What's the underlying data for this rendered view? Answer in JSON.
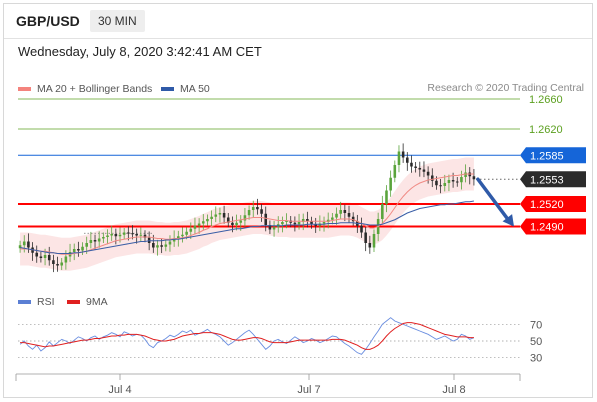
{
  "header": {
    "pair": "GBP/USD",
    "timeframe": "30 MIN",
    "datetime": "Wednesday, July 8, 2020 3:42:41 AM CET",
    "credit": "Research © 2020 Trading Central"
  },
  "legend_price": [
    {
      "label": "MA 20 + Bollinger Bands",
      "color": "#f4837d"
    },
    {
      "label": "MA 50",
      "color": "#2f5aa8"
    }
  ],
  "legend_rsi": [
    {
      "label": "RSI",
      "color": "#5b7fd4"
    },
    {
      "label": "9MA",
      "color": "#e02020"
    }
  ],
  "colors": {
    "resistance_green": "#5ca020",
    "pivot_blue": "#1565d8",
    "support_red": "#ff0000",
    "candle_up": "#5aa43c",
    "candle_down": "#2b2b2b",
    "arrow": "#2f5aa8"
  },
  "chart_data": {
    "type": "line",
    "title": "GBP/USD 30 MIN",
    "x_ticks": [
      "Jul 4",
      "Jul 7",
      "Jul 8"
    ],
    "ylim": [
      1.24,
      1.268
    ],
    "levels": [
      {
        "value": "1.2660",
        "kind": "resistance"
      },
      {
        "value": "1.2620",
        "kind": "resistance"
      },
      {
        "value": "1.2585",
        "kind": "pivot"
      },
      {
        "value": "1.2553",
        "kind": "last"
      },
      {
        "value": "1.2520",
        "kind": "support"
      },
      {
        "value": "1.2490",
        "kind": "support"
      }
    ],
    "price_series": {
      "name": "GBP/USD",
      "close": [
        1.2465,
        1.247,
        1.2462,
        1.2455,
        1.245,
        1.2448,
        1.2452,
        1.2445,
        1.244,
        1.2438,
        1.2442,
        1.245,
        1.2456,
        1.246,
        1.2458,
        1.2463,
        1.2468,
        1.2472,
        1.247,
        1.2474,
        1.2476,
        1.2478,
        1.248,
        1.2477,
        1.2479,
        1.2482,
        1.2481,
        1.248,
        1.2478,
        1.2479,
        1.2475,
        1.2468,
        1.2462,
        1.2465,
        1.2463,
        1.2466,
        1.247,
        1.2474,
        1.2477,
        1.2479,
        1.2483,
        1.2487,
        1.2491,
        1.2494,
        1.2497,
        1.25,
        1.2503,
        1.2506,
        1.2508,
        1.2502,
        1.2495,
        1.2492,
        1.2495,
        1.2498,
        1.2505,
        1.2512,
        1.2516,
        1.2513,
        1.2507,
        1.2492,
        1.2486,
        1.2489,
        1.2493,
        1.2496,
        1.2498,
        1.2495,
        1.2493,
        1.2496,
        1.25,
        1.2497,
        1.2493,
        1.2491,
        1.2494,
        1.2496,
        1.2499,
        1.2502,
        1.2507,
        1.2512,
        1.2508,
        1.2503,
        1.2497,
        1.2491,
        1.2482,
        1.2468,
        1.2462,
        1.248,
        1.25,
        1.252,
        1.2538,
        1.2555,
        1.2572,
        1.259,
        1.2582,
        1.2575,
        1.257,
        1.2568,
        1.2566,
        1.2563,
        1.2558,
        1.2551,
        1.2545,
        1.2544,
        1.2548,
        1.2552,
        1.255,
        1.2549,
        1.2556,
        1.2562,
        1.2557,
        1.2553
      ]
    },
    "ma20": [
      1.246,
      1.246,
      1.246,
      1.2459,
      1.2458,
      1.2457,
      1.2457,
      1.2456,
      1.2455,
      1.2454,
      1.2453,
      1.2453,
      1.2453,
      1.2454,
      1.2455,
      1.2456,
      1.2457,
      1.2459,
      1.2461,
      1.2463,
      1.2465,
      1.2467,
      1.2469,
      1.2471,
      1.2472,
      1.2473,
      1.2474,
      1.2475,
      1.2476,
      1.2476,
      1.2476,
      1.2476,
      1.2475,
      1.2474,
      1.2474,
      1.2473,
      1.2473,
      1.2474,
      1.2474,
      1.2475,
      1.2476,
      1.2478,
      1.248,
      1.2482,
      1.2485,
      1.2487,
      1.249,
      1.2492,
      1.2494,
      1.2495,
      1.2496,
      1.2497,
      1.2498,
      1.2499,
      1.25,
      1.2501,
      1.2502,
      1.2502,
      1.2502,
      1.2501,
      1.25,
      1.2499,
      1.2498,
      1.2498,
      1.2498,
      1.2497,
      1.2497,
      1.2497,
      1.2497,
      1.2497,
      1.2497,
      1.2497,
      1.2497,
      1.2497,
      1.2497,
      1.2498,
      1.2499,
      1.25,
      1.25,
      1.25,
      1.2499,
      1.2497,
      1.2494,
      1.2491,
      1.2488,
      1.2488,
      1.249,
      1.2494,
      1.25,
      1.2507,
      1.2515,
      1.2523,
      1.253,
      1.2536,
      1.2541,
      1.2545,
      1.2548,
      1.255,
      1.2552,
      1.2553,
      1.2554,
      1.2555,
      1.2556,
      1.2557,
      1.2558,
      1.2558,
      1.2559,
      1.256,
      1.256,
      1.256
    ],
    "ma50": [
      1.2462,
      1.2461,
      1.246,
      1.2459,
      1.2458,
      1.2457,
      1.2456,
      1.2455,
      1.2455,
      1.2454,
      1.2454,
      1.2454,
      1.2454,
      1.2455,
      1.2455,
      1.2456,
      1.2457,
      1.2458,
      1.2459,
      1.246,
      1.2461,
      1.2462,
      1.2463,
      1.2464,
      1.2465,
      1.2466,
      1.2467,
      1.2468,
      1.2469,
      1.247,
      1.247,
      1.2471,
      1.2471,
      1.2471,
      1.2471,
      1.2472,
      1.2472,
      1.2473,
      1.2473,
      1.2474,
      1.2475,
      1.2476,
      1.2477,
      1.2478,
      1.2479,
      1.248,
      1.2481,
      1.2482,
      1.2483,
      1.2484,
      1.2485,
      1.2486,
      1.2487,
      1.2487,
      1.2488,
      1.2489,
      1.249,
      1.249,
      1.2491,
      1.2491,
      1.2491,
      1.2491,
      1.2491,
      1.2491,
      1.2492,
      1.2492,
      1.2492,
      1.2492,
      1.2492,
      1.2493,
      1.2493,
      1.2493,
      1.2493,
      1.2493,
      1.2494,
      1.2494,
      1.2494,
      1.2495,
      1.2495,
      1.2495,
      1.2495,
      1.2494,
      1.2494,
      1.2493,
      1.2492,
      1.2492,
      1.2492,
      1.2493,
      1.2495,
      1.2497,
      1.2499,
      1.2502,
      1.2505,
      1.2508,
      1.251,
      1.2512,
      1.2514,
      1.2515,
      1.2516,
      1.2517,
      1.2518,
      1.2519,
      1.2519,
      1.252,
      1.252,
      1.2521,
      1.2522,
      1.2523,
      1.2523,
      1.2524
    ],
    "bollinger_width": 0.0022,
    "forecast_arrow": {
      "from": 1.2553,
      "to": 1.249
    },
    "rsi": {
      "ylim": [
        20,
        80
      ],
      "y_ticks": [
        "70",
        "50",
        "30"
      ],
      "rsi_values": [
        46,
        50,
        44,
        40,
        45,
        38,
        42,
        49,
        44,
        48,
        52,
        50,
        47,
        51,
        55,
        53,
        50,
        54,
        56,
        52,
        55,
        57,
        60,
        58,
        55,
        61,
        59,
        56,
        58,
        57,
        52,
        45,
        42,
        48,
        50,
        53,
        57,
        55,
        58,
        62,
        60,
        63,
        57,
        59,
        61,
        64,
        60,
        58,
        55,
        50,
        45,
        48,
        52,
        56,
        60,
        63,
        58,
        52,
        46,
        40,
        44,
        50,
        52,
        49,
        47,
        51,
        55,
        52,
        48,
        50,
        53,
        51,
        48,
        50,
        53,
        56,
        55,
        51,
        47,
        44,
        40,
        36,
        34,
        40,
        47,
        55,
        62,
        70,
        74,
        78,
        74,
        72,
        70,
        68,
        66,
        64,
        62,
        60,
        58,
        55,
        52,
        54,
        56,
        53,
        50,
        52,
        58,
        56,
        52,
        54
      ],
      "ma9_values": [
        48,
        48,
        47,
        46,
        45,
        44,
        43,
        44,
        44,
        45,
        46,
        47,
        48,
        49,
        50,
        51,
        51,
        52,
        53,
        53,
        54,
        55,
        56,
        56,
        57,
        57,
        58,
        58,
        58,
        57,
        56,
        54,
        52,
        51,
        50,
        50,
        51,
        52,
        54,
        56,
        57,
        58,
        59,
        59,
        60,
        60,
        60,
        59,
        58,
        56,
        54,
        52,
        51,
        51,
        52,
        53,
        54,
        54,
        53,
        51,
        49,
        48,
        48,
        48,
        48,
        49,
        50,
        51,
        51,
        51,
        51,
        51,
        51,
        51,
        51,
        52,
        52,
        52,
        51,
        49,
        47,
        45,
        42,
        40,
        40,
        42,
        45,
        50,
        56,
        61,
        65,
        68,
        71,
        72,
        72,
        71,
        70,
        68,
        66,
        64,
        62,
        60,
        58,
        57,
        56,
        55,
        55,
        55,
        54,
        54
      ]
    }
  }
}
